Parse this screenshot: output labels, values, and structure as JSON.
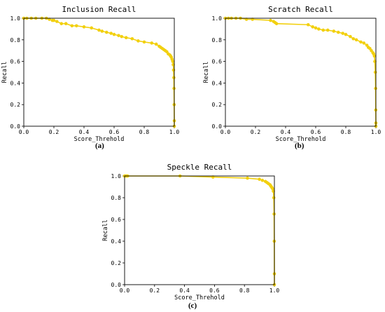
{
  "chart_data": [
    {
      "type": "line",
      "title": "Inclusion Recall",
      "xlabel": "Score_Threhold",
      "ylabel": "Recall",
      "xlim": [
        0.0,
        1.0
      ],
      "ylim": [
        0.0,
        1.0
      ],
      "xticks": [
        "0.0",
        "0.2",
        "0.4",
        "0.6",
        "0.8",
        "1.0"
      ],
      "yticks": [
        "0.0",
        "0.2",
        "0.4",
        "0.6",
        "0.8",
        "1.0"
      ],
      "grid": false,
      "color": "#F2D00F",
      "caption": "(a)",
      "x": [
        0.0,
        0.02,
        0.05,
        0.08,
        0.12,
        0.15,
        0.17,
        0.19,
        0.2,
        0.22,
        0.25,
        0.28,
        0.32,
        0.35,
        0.4,
        0.45,
        0.5,
        0.52,
        0.55,
        0.58,
        0.6,
        0.63,
        0.65,
        0.68,
        0.72,
        0.76,
        0.8,
        0.85,
        0.88,
        0.9,
        0.91,
        0.92,
        0.93,
        0.94,
        0.95,
        0.96,
        0.97,
        0.975,
        0.98,
        0.985,
        0.99,
        0.993,
        0.995,
        0.997,
        0.998,
        0.999,
        1.0,
        1.0
      ],
      "y": [
        1.0,
        1.0,
        1.0,
        1.0,
        1.0,
        1.0,
        0.99,
        0.98,
        0.98,
        0.97,
        0.95,
        0.95,
        0.93,
        0.93,
        0.92,
        0.91,
        0.89,
        0.88,
        0.87,
        0.86,
        0.85,
        0.84,
        0.83,
        0.82,
        0.81,
        0.79,
        0.78,
        0.77,
        0.76,
        0.74,
        0.73,
        0.72,
        0.71,
        0.7,
        0.69,
        0.67,
        0.66,
        0.65,
        0.64,
        0.62,
        0.6,
        0.57,
        0.52,
        0.45,
        0.35,
        0.2,
        0.05,
        0.0
      ]
    },
    {
      "type": "line",
      "title": "Scratch Recall",
      "xlabel": "Score_Threhold",
      "ylabel": "Recall",
      "xlim": [
        0.0,
        1.0
      ],
      "ylim": [
        0.0,
        1.0
      ],
      "xticks": [
        "0.0",
        "0.2",
        "0.4",
        "0.6",
        "0.8",
        "1.0"
      ],
      "yticks": [
        "0.0",
        "0.2",
        "0.4",
        "0.6",
        "0.8",
        "1.0"
      ],
      "grid": false,
      "color": "#F2D00F",
      "caption": "(b)",
      "x": [
        0.0,
        0.02,
        0.04,
        0.07,
        0.1,
        0.14,
        0.18,
        0.3,
        0.32,
        0.33,
        0.34,
        0.55,
        0.58,
        0.6,
        0.62,
        0.65,
        0.68,
        0.72,
        0.75,
        0.78,
        0.8,
        0.83,
        0.85,
        0.87,
        0.9,
        0.92,
        0.94,
        0.95,
        0.96,
        0.97,
        0.98,
        0.985,
        0.99,
        0.993,
        0.996,
        0.998,
        0.999,
        1.0,
        1.0
      ],
      "y": [
        1.0,
        1.0,
        1.0,
        1.0,
        1.0,
        0.99,
        0.99,
        0.98,
        0.97,
        0.96,
        0.95,
        0.94,
        0.92,
        0.91,
        0.9,
        0.89,
        0.89,
        0.88,
        0.87,
        0.86,
        0.85,
        0.83,
        0.81,
        0.8,
        0.78,
        0.77,
        0.75,
        0.73,
        0.72,
        0.7,
        0.68,
        0.67,
        0.65,
        0.6,
        0.5,
        0.35,
        0.15,
        0.03,
        0.0
      ]
    },
    {
      "type": "line",
      "title": "Speckle Recall",
      "xlabel": "Score_Threhold",
      "ylabel": "Recall",
      "xlim": [
        0.0,
        1.0
      ],
      "ylim": [
        0.0,
        1.0
      ],
      "xticks": [
        "0.0",
        "0.2",
        "0.4",
        "0.6",
        "0.8",
        "1.0"
      ],
      "yticks": [
        "0.0",
        "0.2",
        "0.4",
        "0.6",
        "0.8",
        "1.0"
      ],
      "grid": false,
      "color": "#F2D00F",
      "caption": "(c)",
      "x": [
        0.0,
        0.005,
        0.01,
        0.015,
        0.02,
        0.37,
        0.59,
        0.82,
        0.9,
        0.92,
        0.94,
        0.95,
        0.96,
        0.97,
        0.975,
        0.98,
        0.985,
        0.99,
        0.993,
        0.996,
        0.998,
        0.999,
        1.0,
        1.0
      ],
      "y": [
        1.0,
        1.0,
        1.0,
        1.0,
        1.0,
        1.0,
        0.99,
        0.98,
        0.97,
        0.96,
        0.95,
        0.94,
        0.93,
        0.92,
        0.91,
        0.9,
        0.89,
        0.88,
        0.86,
        0.8,
        0.65,
        0.4,
        0.1,
        0.0
      ]
    }
  ]
}
